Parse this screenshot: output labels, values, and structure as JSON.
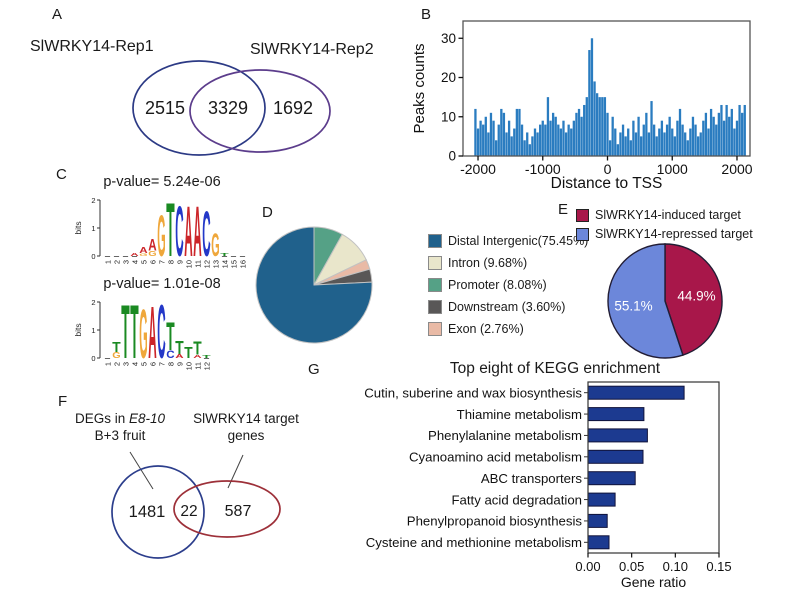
{
  "panel_labels": {
    "a": "A",
    "b": "B",
    "c": "C",
    "d": "D",
    "e": "E",
    "f": "F",
    "g": "G"
  },
  "panel_a": {
    "left_set_label": "SlWRKY14-Rep1",
    "right_set_label": "SlWRKY14-Rep2",
    "left_only": "2515",
    "overlap": "3329",
    "right_only": "1692",
    "left_color": "#2c3a85",
    "right_color": "#5c3d8c"
  },
  "panel_f": {
    "left_label_line1_prefix": "DEGs in ",
    "left_label_line1_italic": "E8-10",
    "left_label_line2": "B+3 fruit",
    "right_label_line1": "SlWRKY14 target",
    "right_label_line2": "genes",
    "left_only": "1481",
    "overlap": "22",
    "right_only": "587",
    "left_color": "#2c3e8c",
    "right_color": "#9d3039"
  },
  "chart_data": [
    {
      "id": "tss-histogram",
      "type": "bar",
      "subtype": "histogram",
      "title": "",
      "xlabel": "Distance to TSS",
      "ylabel": "Peaks counts",
      "bar_color": "#2a7cc0",
      "xlim": [
        -2232,
        2201
      ],
      "ylim": [
        0,
        34.4
      ],
      "xticks": [
        -2000,
        -1000,
        0,
        1000,
        2000
      ],
      "yticks": [
        0,
        10,
        20,
        30
      ],
      "x_start": -2040,
      "bin_width": 40,
      "values": [
        12,
        7,
        9,
        8,
        10,
        6,
        11,
        9,
        4,
        8,
        12,
        11,
        6,
        9,
        5,
        7,
        12,
        12,
        8,
        4,
        6,
        3,
        5,
        7,
        6,
        8,
        9,
        8,
        15,
        9,
        11,
        10,
        8,
        7,
        9,
        6,
        8,
        7,
        9,
        11,
        12,
        10,
        13,
        15,
        27,
        30,
        19,
        16,
        15,
        15,
        15,
        11,
        4,
        10,
        7,
        3,
        6,
        8,
        5,
        7,
        4,
        9,
        6,
        10,
        5,
        8,
        11,
        6,
        14,
        8,
        5,
        7,
        9,
        6,
        8,
        10,
        7,
        5,
        9,
        12,
        8,
        6,
        4,
        7,
        10,
        8,
        5,
        6,
        9,
        11,
        7,
        12,
        10,
        8,
        11,
        13,
        9,
        13,
        10,
        12,
        7,
        9,
        13,
        11,
        13
      ]
    },
    {
      "id": "motif-logo-1",
      "type": "logo",
      "pvalue": "p-value= 5.24e-06",
      "ylabel": "bits",
      "yticks": [
        0,
        1,
        2
      ],
      "consensus": "GTCAACG",
      "letter_colors": {
        "A": "#cc2529",
        "C": "#2438c8",
        "G": "#efa73b",
        "T": "#1a8a22"
      },
      "positions": [
        [],
        [],
        [],
        [
          [
            "A",
            0.13
          ]
        ],
        [
          [
            "A",
            0.22
          ],
          [
            "G",
            0.1
          ]
        ],
        [
          [
            "A",
            0.45
          ],
          [
            "G",
            0.2
          ]
        ],
        [
          [
            "G",
            1.55
          ]
        ],
        [
          [
            "T",
            2.0
          ]
        ],
        [
          [
            "C",
            1.9
          ]
        ],
        [
          [
            "A",
            1.9
          ]
        ],
        [
          [
            "A",
            1.9
          ]
        ],
        [
          [
            "C",
            1.7
          ]
        ],
        [
          [
            "G",
            0.85
          ]
        ],
        [
          [
            "T",
            0.12
          ]
        ],
        [],
        []
      ]
    },
    {
      "id": "motif-logo-2",
      "type": "logo",
      "pvalue": "p-value= 1.01e-08",
      "ylabel": "bits",
      "yticks": [
        0,
        1,
        2
      ],
      "consensus": "TTGACT",
      "letter_colors": {
        "A": "#cc2529",
        "C": "#2438c8",
        "G": "#efa73b",
        "T": "#1a8a22"
      },
      "positions": [
        [],
        [
          [
            "T",
            0.38
          ],
          [
            "G",
            0.22
          ]
        ],
        [
          [
            "T",
            2.0
          ]
        ],
        [
          [
            "T",
            2.0
          ]
        ],
        [
          [
            "G",
            1.85
          ]
        ],
        [
          [
            "A",
            1.95
          ]
        ],
        [
          [
            "C",
            2.0
          ]
        ],
        [
          [
            "T",
            1.05
          ],
          [
            "C",
            0.28
          ]
        ],
        [
          [
            "T",
            0.5
          ],
          [
            "A",
            0.14
          ]
        ],
        [
          [
            "T",
            0.42
          ]
        ],
        [
          [
            "T",
            0.5
          ],
          [
            "A",
            0.12
          ]
        ],
        [
          [
            "T",
            0.12
          ]
        ]
      ]
    },
    {
      "id": "annotation-pie",
      "type": "pie",
      "stroke": "#c2c2c2",
      "stroke_width": 1,
      "slices": [
        {
          "label": "Distal Intergenic(75.45%)",
          "pct": 75.45,
          "color": "#20618c",
          "order": 4
        },
        {
          "label": "Intron (9.68%)",
          "pct": 9.68,
          "color": "#e9e6cb",
          "order": 1
        },
        {
          "label": "Promoter (8.08%)",
          "pct": 8.08,
          "color": "#55a186",
          "order": 0
        },
        {
          "label": "Downstream (3.60%)",
          "pct": 3.6,
          "color": "#595757",
          "order": 3
        },
        {
          "label": "Exon (2.76%)",
          "pct": 2.76,
          "color": "#e9baa6",
          "order": 2
        }
      ]
    },
    {
      "id": "target-pie",
      "type": "pie",
      "stroke": "#221d35",
      "stroke_width": 1.4,
      "value_label_color": "#ffffff",
      "slices": [
        {
          "label": "SlWRKY14-induced target",
          "pct": 44.9,
          "color": "#a8174a",
          "value_label": "44.9%",
          "order": 0
        },
        {
          "label": "SlWRKY14-repressed target",
          "pct": 55.1,
          "color": "#6c87da",
          "value_label": "55.1%",
          "order": 1
        }
      ]
    },
    {
      "id": "kegg-bar",
      "type": "bar",
      "orientation": "horizontal",
      "title": "Top eight of KEGG enrichment",
      "xlabel": "Gene ratio",
      "bar_color": "#1c3a90",
      "bar_border": "#10123a",
      "xlim": [
        0,
        0.15
      ],
      "xticks": [
        0,
        0.05,
        0.1,
        0.15
      ],
      "xtick_labels": [
        "0.00",
        "0.05",
        "0.10",
        "0.15"
      ],
      "categories": [
        "Cutin, suberine and wax biosynthesis",
        "Thiamine metabolism",
        "Phenylalanine metabolism",
        "Cyanoamino acid metabolism",
        "ABC transporters",
        "Fatty acid degradation",
        "Phenylpropanoid biosynthesis",
        "Cysteine and methionine metabolism"
      ],
      "values": [
        0.11,
        0.064,
        0.068,
        0.063,
        0.054,
        0.031,
        0.022,
        0.024
      ]
    }
  ]
}
